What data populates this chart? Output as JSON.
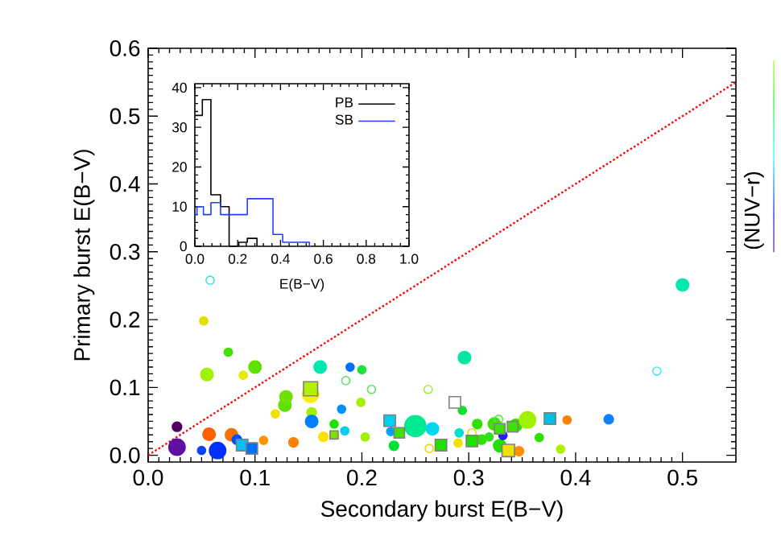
{
  "chart_data": [
    {
      "type": "bubble",
      "xlabel": "Secondary burst E(B−V)",
      "ylabel": "Primary burst E(B−V)",
      "clabel": "(NUV−r)",
      "xlim": [
        0,
        0.55
      ],
      "ylim": [
        -0.01,
        0.6
      ],
      "xticks": [
        {
          "value": 0,
          "label": "0.0"
        },
        {
          "value": 0.1,
          "label": "0.1"
        },
        {
          "value": 0.2,
          "label": "0.2"
        },
        {
          "value": 0.3,
          "label": "0.3"
        },
        {
          "value": 0.4,
          "label": "0.4"
        },
        {
          "value": 0.5,
          "label": "0.5"
        }
      ],
      "yticks": [
        {
          "value": 0,
          "label": "0.0"
        },
        {
          "value": 0.1,
          "label": "0.1"
        },
        {
          "value": 0.2,
          "label": "0.2"
        },
        {
          "value": 0.3,
          "label": "0.3"
        },
        {
          "value": 0.4,
          "label": "0.4"
        },
        {
          "value": 0.5,
          "label": "0.5"
        },
        {
          "value": 0.6,
          "label": "0.6"
        }
      ],
      "series": [
        {
          "type": "bubble",
          "marker": "circle",
          "x": [
            0.052,
            0.075,
            0.055,
            0.089,
            0.1,
            0.027,
            0.027,
            0.05,
            0.065,
            0.057,
            0.078,
            0.083,
            0.108,
            0.119,
            0.136,
            0.128,
            0.129,
            0.152,
            0.153,
            0.153,
            0.161,
            0.164,
            0.174,
            0.181,
            0.184,
            0.189,
            0.2,
            0.199,
            0.203,
            0.227,
            0.23,
            0.25,
            0.266,
            0.296,
            0.294,
            0.291,
            0.29,
            0.308,
            0.312,
            0.319,
            0.324,
            0.329,
            0.332,
            0.344,
            0.347,
            0.355,
            0.366,
            0.386,
            0.392,
            0.431,
            0.5
          ],
          "values": [
            0.198,
            0.152,
            0.119,
            0.118,
            0.13,
            0.042,
            0.012,
            0.007,
            0.007,
            0.031,
            0.03,
            0.023,
            0.022,
            0.061,
            0.019,
            0.074,
            0.086,
            0.09,
            0.063,
            0.05,
            0.13,
            0.027,
            0.046,
            0.068,
            0.036,
            0.13,
            0.126,
            0.078,
            0.027,
            0.035,
            0.014,
            0.043,
            0.039,
            0.144,
            0.066,
            0.033,
            0.018,
            0.046,
            0.023,
            0.027,
            0.046,
            0.014,
            0.029,
            0.044,
            0.006,
            0.052,
            0.026,
            0.009,
            0.052,
            0.053,
            0.251
          ],
          "sizes": [
            0.15,
            0.15,
            0.35,
            0.15,
            0.35,
            0.2,
            0.6,
            0.15,
            0.6,
            0.35,
            0.35,
            0.2,
            0.15,
            0.15,
            0.2,
            0.35,
            0.35,
            0.6,
            0.2,
            0.35,
            0.35,
            0.2,
            0.15,
            0.15,
            0.15,
            0.15,
            0.15,
            0.15,
            0.15,
            0.15,
            0.2,
            1,
            0.35,
            0.35,
            0.15,
            0.15,
            0.15,
            0.2,
            0.2,
            0.15,
            0.35,
            0.35,
            0.15,
            0.35,
            0.2,
            0.6,
            0.15,
            0.15,
            0.15,
            0.2,
            0.35
          ],
          "colors": [
            "#e0e000",
            "#40e000",
            "#a0f000",
            "#e8e800",
            "#60e000",
            "#500060",
            "#6010a0",
            "#1040ff",
            "#0030ff",
            "#ff6000",
            "#ff7000",
            "#0050ff",
            "#ff9000",
            "#f0e000",
            "#ff8000",
            "#60e000",
            "#70e000",
            "#f8f000",
            "#a0f000",
            "#0080ff",
            "#00e8b0",
            "#ffe000",
            "#20e000",
            "#0090ff",
            "#00d0f0",
            "#0070ff",
            "#20e040",
            "#a0f000",
            "#a0f000",
            "#00a0ff",
            "#00e030",
            "#00e890",
            "#00d8f0",
            "#00e8a0",
            "#10e030",
            "#00e0d0",
            "#f0e000",
            "#30e000",
            "#30e000",
            "#30e020",
            "#40e000",
            "#20e000",
            "#2020ff",
            "#30e000",
            "#ff9000",
            "#a0f000",
            "#30e000",
            "#b0f000",
            "#ff8000",
            "#1080ff",
            "#00e8b0"
          ]
        },
        {
          "type": "scatter",
          "marker": "circle",
          "x": [
            0.058,
            0.185,
            0.209,
            0.262,
            0.263,
            0.303,
            0.328,
            0.476
          ],
          "values": [
            0.258,
            0.11,
            0.097,
            0.097,
            0.01,
            0.033,
            0.053,
            0.124
          ],
          "colors": [
            "#40e0e0",
            "#60e060",
            "#60e060",
            "#a0f040",
            "#ffd000",
            "#e0e000",
            "#60e060",
            "#40f0f0"
          ]
        },
        {
          "type": "bubble",
          "marker": "square",
          "x": [
            0.088,
            0.097,
            0.152,
            0.174,
            0.226,
            0.235,
            0.274,
            0.287,
            0.303,
            0.329,
            0.337,
            0.341,
            0.376
          ],
          "values": [
            0.015,
            0.01,
            0.098,
            0.03,
            0.051,
            0.033,
            0.015,
            0.078,
            0.021,
            0.039,
            0.007,
            0.042,
            0.054
          ],
          "sizes": [
            0.3,
            0.3,
            0.45,
            0.15,
            0.3,
            0.25,
            0.3,
            0.3,
            0.3,
            0.25,
            0.35,
            0.25,
            0.3
          ],
          "colors": [
            "#00c0ff",
            "#0070ff",
            "#b0f000",
            "#80e000",
            "#00d0f0",
            "#40e000",
            "#20e000",
            "#ffffff",
            "#20e000",
            "#40e000",
            "#f0e000",
            "#40e000",
            "#00c0e0"
          ]
        },
        {
          "type": "line",
          "color": "#ff0000",
          "line_style": "dotted",
          "x": [
            0,
            0.55
          ],
          "values": [
            0,
            0.55
          ]
        }
      ]
    },
    {
      "type": "step",
      "xlabel": "E(B−V)",
      "xlim": [
        0,
        1
      ],
      "ylim": [
        0,
        41
      ],
      "legend": "top right",
      "xticks": [
        {
          "value": 0,
          "label": "0.0"
        },
        {
          "value": 0.2,
          "label": "0.2"
        },
        {
          "value": 0.4,
          "label": "0.4"
        },
        {
          "value": 0.6,
          "label": "0.6"
        },
        {
          "value": 0.8,
          "label": "0.8"
        },
        {
          "value": 1,
          "label": "1.0"
        }
      ],
      "yticks": [
        0,
        10,
        20,
        30,
        40
      ],
      "series": [
        {
          "name": "PB",
          "color": "#000000",
          "x": [
            0,
            0.035,
            0.075,
            0.12,
            0.16,
            0.205,
            0.245,
            0.29
          ],
          "values": [
            33,
            37,
            13,
            10,
            0,
            1,
            2,
            0
          ]
        },
        {
          "name": "SB",
          "color": "#2040ff",
          "x": [
            0,
            0.01,
            0.04,
            0.075,
            0.12,
            0.245,
            0.365,
            0.41,
            0.535
          ],
          "values": [
            8,
            10,
            8,
            11,
            8,
            12,
            3,
            1,
            0
          ]
        }
      ]
    }
  ]
}
